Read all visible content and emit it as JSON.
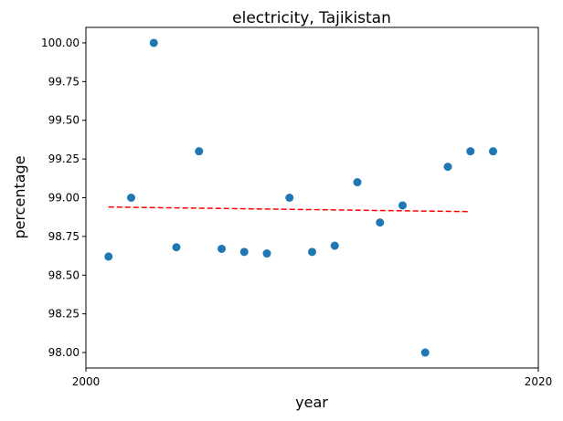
{
  "chart_data": {
    "type": "scatter",
    "title": "electricity, Tajikistan",
    "xlabel": "year",
    "ylabel": "percentage",
    "xlim": [
      2000,
      2020
    ],
    "ylim": [
      97.9,
      100.1
    ],
    "xticks": [
      "2000",
      "2020"
    ],
    "yticks": [
      "98.00",
      "98.25",
      "98.50",
      "98.75",
      "99.00",
      "99.25",
      "99.50",
      "99.75",
      "100.00"
    ],
    "grid": false,
    "series": [
      {
        "x": [
          2001,
          2002,
          2003,
          2004,
          2005,
          2006,
          2007,
          2008,
          2009,
          2010,
          2011,
          2012,
          2013,
          2014,
          2015,
          2016,
          2017,
          2018
        ],
        "y": [
          98.62,
          99.0,
          100.0,
          98.68,
          99.3,
          98.67,
          98.65,
          98.64,
          99.0,
          98.65,
          98.69,
          99.1,
          98.84,
          98.95,
          98.0,
          99.2,
          99.3,
          99.3
        ],
        "color": "#1f77b4"
      }
    ],
    "trendline": {
      "x": [
        2001,
        2017
      ],
      "y": [
        98.94,
        98.91
      ],
      "color": "#ff0000",
      "style": "dashed"
    }
  }
}
